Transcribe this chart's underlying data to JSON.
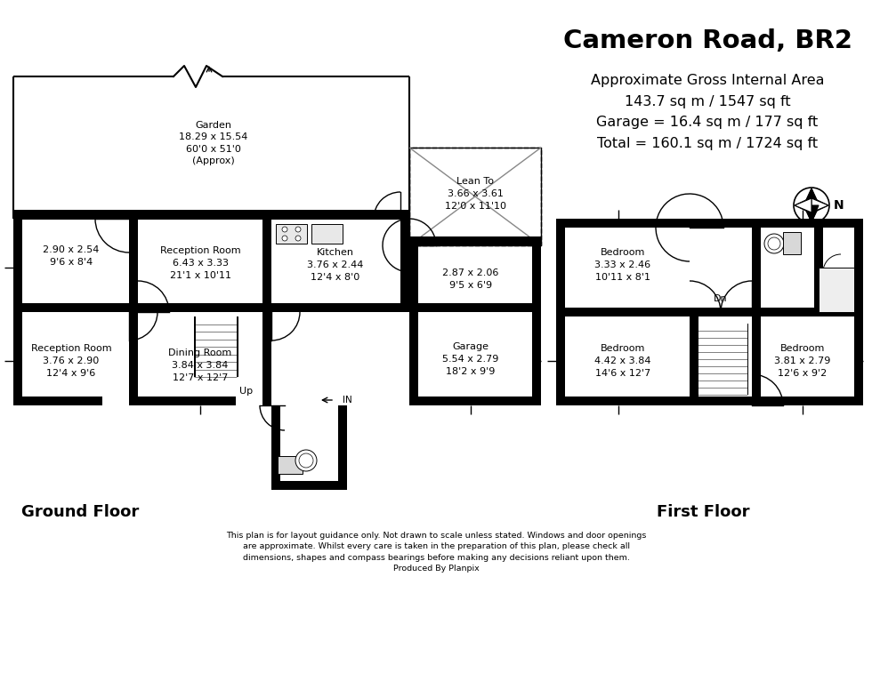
{
  "title": "Cameron Road, BR2",
  "area_line1": "Approximate Gross Internal Area",
  "area_line2": "143.7 sq m / 1547 sq ft",
  "area_line3": "Garage = 16.4 sq m / 177 sq ft",
  "area_line4": "Total = 160.1 sq m / 1724 sq ft",
  "ground_floor_label": "Ground Floor",
  "first_floor_label": "First Floor",
  "disclaimer": "This plan is for layout guidance only. Not drawn to scale unless stated. Windows and door openings\nare approximate. Whilst every care is taken in the preparation of this plan, please check all\ndimensions, shapes and compass bearings before making any decisions reliant upon them.\nProduced By Planpix",
  "bg_color": "#ffffff",
  "wall_color": "#000000"
}
